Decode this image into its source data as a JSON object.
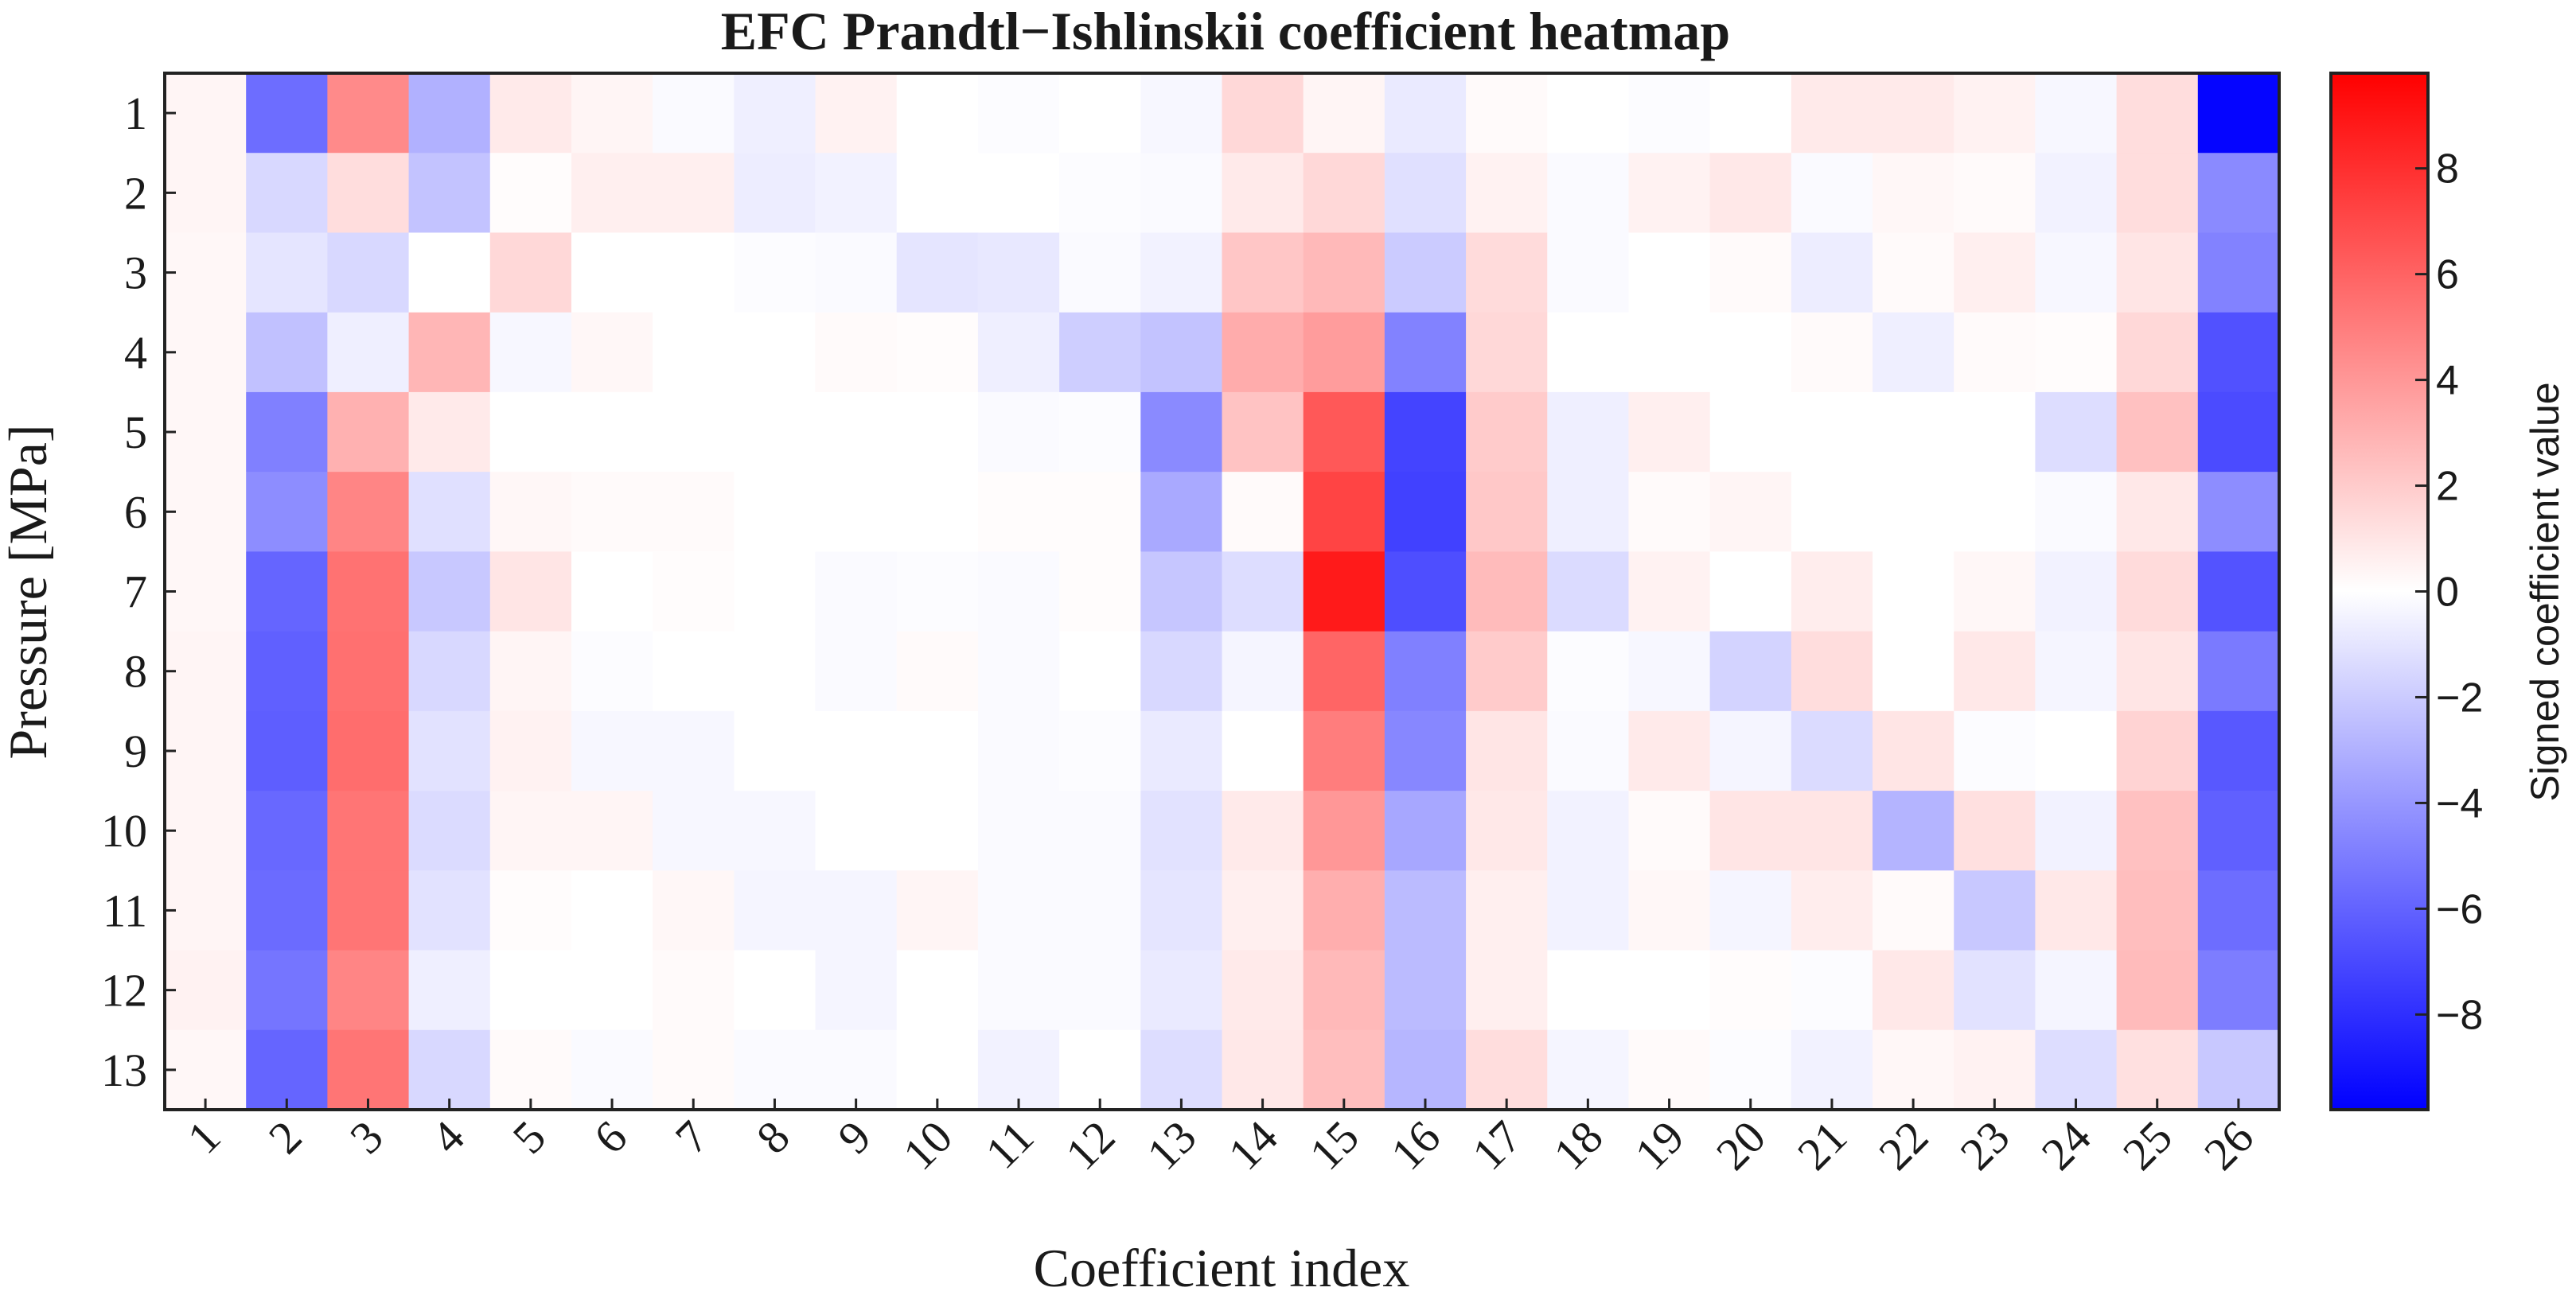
{
  "chart_data": {
    "type": "heatmap",
    "title": "EFC Prandtl−Ishlinskii coefficient heatmap",
    "xlabel": "Coefficient index",
    "ylabel": "Pressure [MPa]",
    "x_categories": [
      "1",
      "2",
      "3",
      "4",
      "5",
      "6",
      "7",
      "8",
      "9",
      "10",
      "11",
      "12",
      "13",
      "14",
      "15",
      "16",
      "17",
      "18",
      "19",
      "20",
      "21",
      "22",
      "23",
      "24",
      "25",
      "26"
    ],
    "y_categories": [
      "1",
      "2",
      "3",
      "4",
      "5",
      "6",
      "7",
      "8",
      "9",
      "10",
      "11",
      "12",
      "13"
    ],
    "colorbar": {
      "label": "Signed coefficient value",
      "vmin": -9.8,
      "vmax": 9.8,
      "ticks": [
        8,
        6,
        4,
        2,
        0,
        -2,
        -4,
        -6,
        -8
      ],
      "tick_labels": [
        "8",
        "6",
        "4",
        "2",
        "0",
        "−2",
        "−4",
        "−6",
        "−8"
      ],
      "colormap": "bwr",
      "color_min": "#0000ff",
      "color_mid": "#ffffff",
      "color_max": "#ff0000"
    },
    "values": [
      [
        0.4,
        -5.6,
        4.5,
        -3.0,
        0.8,
        0.4,
        -0.2,
        -0.6,
        0.5,
        0,
        -0.1,
        0,
        -0.3,
        1.5,
        0.4,
        -0.8,
        0.2,
        0,
        -0.1,
        0,
        0.8,
        0.8,
        0.5,
        -0.3,
        1.3,
        -9.6
      ],
      [
        0.4,
        -1.5,
        1.3,
        -2.3,
        0.1,
        0.6,
        0.6,
        -0.7,
        -0.5,
        0,
        0,
        -0.1,
        -0.2,
        0.8,
        1.5,
        -1.2,
        0.5,
        -0.2,
        0.5,
        0.9,
        -0.2,
        0.3,
        0.2,
        -0.5,
        1.3,
        -4.5
      ],
      [
        0.3,
        -1.0,
        -1.5,
        0,
        1.5,
        0,
        0,
        -0.1,
        -0.2,
        -1.0,
        -0.9,
        -0.2,
        -0.5,
        2.2,
        2.7,
        -2.0,
        1.4,
        -0.2,
        0,
        0.2,
        -0.7,
        0.2,
        0.6,
        -0.3,
        1.0,
        -4.8
      ],
      [
        0.3,
        -2.4,
        -0.6,
        2.8,
        -0.3,
        0.3,
        0,
        0,
        0.2,
        0.1,
        -0.6,
        -1.9,
        -2.3,
        3.2,
        3.8,
        -4.8,
        1.5,
        0,
        0,
        0,
        0.2,
        -0.6,
        0.2,
        0.1,
        1.5,
        -6.7
      ],
      [
        0.3,
        -4.9,
        3.0,
        0.8,
        0,
        0,
        0,
        0,
        0,
        0,
        -0.2,
        -0.1,
        -4.5,
        2.3,
        6.4,
        -7.2,
        2.0,
        -0.6,
        0.6,
        0,
        0,
        0,
        0,
        -1.3,
        2.4,
        -6.9
      ],
      [
        0.3,
        -4.4,
        4.7,
        -1.2,
        0.3,
        0.2,
        0.2,
        0,
        0,
        0,
        0.1,
        0.1,
        -3.3,
        0.2,
        7.2,
        -7.3,
        2.1,
        -0.6,
        0.2,
        0.4,
        0,
        0,
        0,
        -0.2,
        0.9,
        -4.4
      ],
      [
        0.3,
        -5.9,
        5.4,
        -2.1,
        1.0,
        0,
        0.1,
        0,
        -0.2,
        -0.1,
        -0.2,
        0.1,
        -2.2,
        -1.3,
        8.8,
        -6.8,
        2.6,
        -1.4,
        0.5,
        0,
        0.7,
        0,
        0.3,
        -0.5,
        1.4,
        -6.6
      ],
      [
        0.4,
        -6.1,
        5.5,
        -1.5,
        0.4,
        -0.1,
        0,
        0,
        -0.2,
        0.2,
        -0.2,
        0,
        -1.5,
        -0.4,
        5.9,
        -4.9,
        2.0,
        -0.1,
        -0.3,
        -1.7,
        1.3,
        0,
        0.9,
        -0.4,
        1.0,
        -5.1
      ],
      [
        0.4,
        -6.2,
        5.6,
        -1.1,
        0.5,
        -0.3,
        -0.3,
        0,
        0,
        0,
        -0.2,
        -0.1,
        -0.8,
        0,
        5.0,
        -4.6,
        1.0,
        -0.2,
        0.8,
        -0.4,
        -1.4,
        1.0,
        -0.1,
        0,
        1.7,
        -6.4
      ],
      [
        0.4,
        -5.8,
        5.3,
        -1.4,
        0.4,
        0.4,
        -0.3,
        -0.3,
        0,
        0,
        -0.2,
        -0.2,
        -1.1,
        0.8,
        4.0,
        -3.4,
        0.9,
        -0.5,
        0.2,
        1.0,
        1.0,
        -2.9,
        1.2,
        -0.5,
        2.4,
        -6.1
      ],
      [
        0.4,
        -5.7,
        5.3,
        -1.1,
        0.1,
        0,
        0.3,
        -0.4,
        -0.4,
        0.4,
        -0.2,
        -0.2,
        -1.0,
        0.6,
        3.1,
        -2.6,
        0.6,
        -0.5,
        0.3,
        -0.4,
        0.7,
        0.2,
        -2.1,
        0.9,
        2.5,
        -5.6
      ],
      [
        0.5,
        -5.3,
        4.7,
        -0.6,
        0,
        0,
        0.2,
        0,
        -0.4,
        0,
        -0.2,
        -0.2,
        -0.8,
        0.8,
        2.7,
        -2.6,
        0.6,
        0,
        0,
        0.1,
        -0.1,
        0.9,
        -1.1,
        -0.4,
        2.6,
        -5.0
      ],
      [
        0.3,
        -5.9,
        5.3,
        -1.5,
        0.2,
        -0.2,
        0.2,
        -0.2,
        -0.2,
        0,
        -0.5,
        0,
        -1.3,
        0.9,
        2.5,
        -2.8,
        1.3,
        -0.4,
        0.2,
        -0.1,
        -0.5,
        0.3,
        0.5,
        -1.3,
        1.2,
        -2.1
      ]
    ]
  }
}
